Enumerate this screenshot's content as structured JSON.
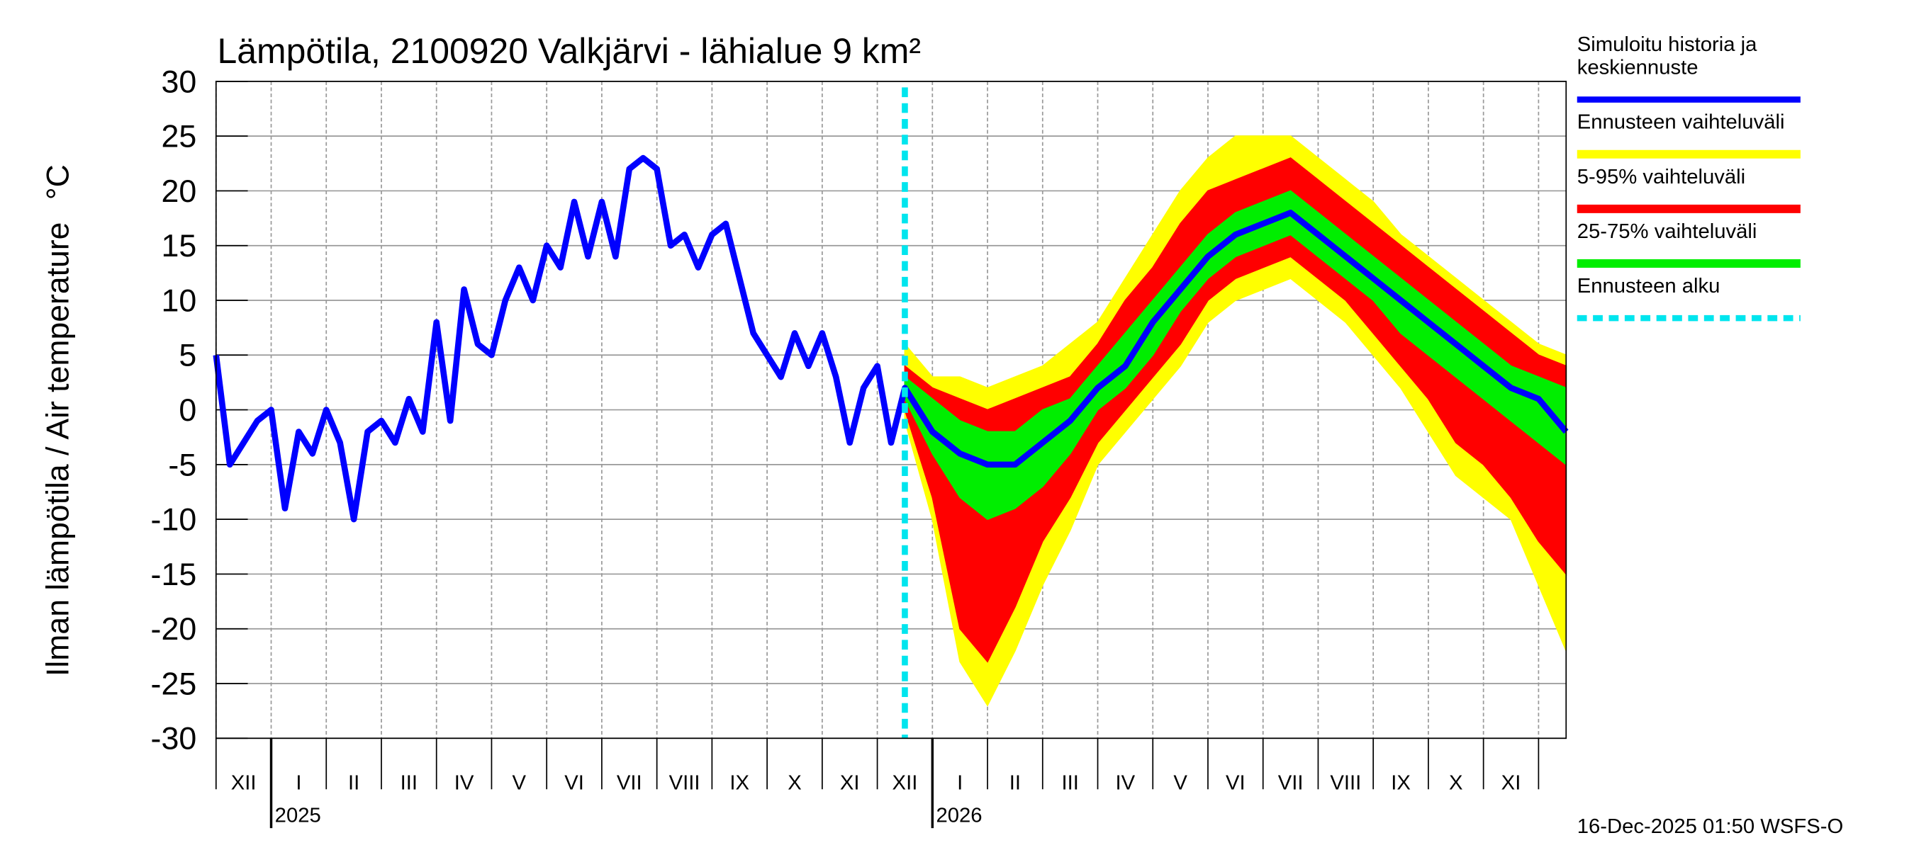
{
  "chart_data": {
    "type": "line",
    "title": "Lämpötila, 2100920 Valkjärvi - lähialue 9 km²",
    "ylabel": "Ilman lämpötila / Air temperature",
    "yunit": "°C",
    "footer": "16-Dec-2025 01:50 WSFS-O",
    "ylim": [
      -30,
      30
    ],
    "yticks": [
      30,
      25,
      20,
      15,
      10,
      5,
      0,
      -5,
      -10,
      -15,
      -20,
      -25,
      -30
    ],
    "xlim": [
      0,
      24.5
    ],
    "xticks": [
      0,
      1,
      2,
      3,
      4,
      5,
      6,
      7,
      8,
      9,
      10,
      11,
      12,
      13,
      14,
      15,
      16,
      17,
      18,
      19,
      20,
      21,
      22,
      23,
      24
    ],
    "month_labels": [
      {
        "value": 0.5,
        "label": "XII"
      },
      {
        "value": 1.5,
        "label": "I"
      },
      {
        "value": 2.5,
        "label": "II"
      },
      {
        "value": 3.5,
        "label": "III"
      },
      {
        "value": 4.5,
        "label": "IV"
      },
      {
        "value": 5.5,
        "label": "V"
      },
      {
        "value": 6.5,
        "label": "VI"
      },
      {
        "value": 7.5,
        "label": "VII"
      },
      {
        "value": 8.5,
        "label": "VIII"
      },
      {
        "value": 9.5,
        "label": "IX"
      },
      {
        "value": 10.5,
        "label": "X"
      },
      {
        "value": 11.5,
        "label": "XI"
      },
      {
        "value": 12.5,
        "label": "XII"
      },
      {
        "value": 13.5,
        "label": "I"
      },
      {
        "value": 14.5,
        "label": "II"
      },
      {
        "value": 15.5,
        "label": "III"
      },
      {
        "value": 16.5,
        "label": "IV"
      },
      {
        "value": 17.5,
        "label": "V"
      },
      {
        "value": 18.5,
        "label": "VI"
      },
      {
        "value": 19.5,
        "label": "VII"
      },
      {
        "value": 20.5,
        "label": "VIII"
      },
      {
        "value": 21.5,
        "label": "IX"
      },
      {
        "value": 22.5,
        "label": "X"
      },
      {
        "value": 23.5,
        "label": "XI"
      }
    ],
    "year_labels": [
      {
        "value": 1,
        "label": "2025"
      },
      {
        "value": 13,
        "label": "2026"
      }
    ],
    "grid": true,
    "bands": [
      {
        "name": "Ennusteen vaihteluväli",
        "color": "#ffff00",
        "x": [
          12.5,
          13,
          13.5,
          14,
          14.5,
          15,
          15.5,
          16,
          16.5,
          17,
          17.5,
          18,
          18.5,
          19,
          19.5,
          20,
          20.5,
          21,
          21.5,
          22,
          22.5,
          23,
          23.5,
          24,
          24.5
        ],
        "low": [
          -1,
          -10,
          -23,
          -27,
          -22,
          -16,
          -11,
          -5,
          -2,
          1,
          4,
          8,
          10,
          11,
          12,
          10,
          8,
          5,
          2,
          -2,
          -6,
          -8,
          -10,
          -16,
          -22
        ],
        "high": [
          6,
          3,
          3,
          2,
          3,
          4,
          6,
          8,
          12,
          16,
          20,
          23,
          25,
          25,
          25,
          23,
          21,
          19,
          16,
          14,
          12,
          10,
          8,
          6,
          5
        ]
      },
      {
        "name": "5-95% vaihteluväli",
        "color": "#ff0000",
        "x": [
          12.5,
          13,
          13.5,
          14,
          14.5,
          15,
          15.5,
          16,
          16.5,
          17,
          17.5,
          18,
          18.5,
          19,
          19.5,
          20,
          20.5,
          21,
          21.5,
          22,
          22.5,
          23,
          23.5,
          24,
          24.5
        ],
        "low": [
          0,
          -8,
          -20,
          -23,
          -18,
          -12,
          -8,
          -3,
          0,
          3,
          6,
          10,
          12,
          13,
          14,
          12,
          10,
          7,
          4,
          1,
          -3,
          -5,
          -8,
          -12,
          -15
        ],
        "high": [
          4,
          2,
          1,
          0,
          1,
          2,
          3,
          6,
          10,
          13,
          17,
          20,
          21,
          22,
          23,
          21,
          19,
          17,
          15,
          13,
          11,
          9,
          7,
          5,
          4
        ]
      },
      {
        "name": "25-75% vaihteluväli",
        "color": "#00ee00",
        "x": [
          12.5,
          13,
          13.5,
          14,
          14.5,
          15,
          15.5,
          16,
          16.5,
          17,
          17.5,
          18,
          18.5,
          19,
          19.5,
          20,
          20.5,
          21,
          21.5,
          22,
          22.5,
          23,
          23.5,
          24,
          24.5
        ],
        "low": [
          1,
          -4,
          -8,
          -10,
          -9,
          -7,
          -4,
          0,
          2,
          5,
          9,
          12,
          14,
          15,
          16,
          14,
          12,
          10,
          7,
          5,
          3,
          1,
          -1,
          -3,
          -5
        ],
        "high": [
          3,
          1,
          -1,
          -2,
          -2,
          0,
          1,
          4,
          7,
          10,
          13,
          16,
          18,
          19,
          20,
          18,
          16,
          14,
          12,
          10,
          8,
          6,
          4,
          3,
          2
        ]
      }
    ],
    "series": [
      {
        "name": "Simuloitu historia ja\nkeskiennuste",
        "color": "#0000ff",
        "x": [
          0,
          0.25,
          0.5,
          0.75,
          1,
          1.25,
          1.5,
          1.75,
          2,
          2.25,
          2.5,
          2.75,
          3,
          3.25,
          3.5,
          3.75,
          4,
          4.25,
          4.5,
          4.75,
          5,
          5.25,
          5.5,
          5.75,
          6,
          6.25,
          6.5,
          6.75,
          7,
          7.25,
          7.5,
          7.75,
          8,
          8.25,
          8.5,
          8.75,
          9,
          9.25,
          9.5,
          9.75,
          10,
          10.25,
          10.5,
          10.75,
          11,
          11.25,
          11.5,
          11.75,
          12,
          12.25,
          12.5,
          13,
          13.5,
          14,
          14.5,
          15,
          15.5,
          16,
          16.5,
          17,
          17.5,
          18,
          18.5,
          19,
          19.5,
          20,
          20.5,
          21,
          21.5,
          22,
          22.5,
          23,
          23.5,
          24,
          24.5
        ],
        "values": [
          5,
          -5,
          -3,
          -1,
          0,
          -9,
          -2,
          -4,
          0,
          -3,
          -10,
          -2,
          -1,
          -3,
          1,
          -2,
          8,
          -1,
          11,
          6,
          5,
          10,
          13,
          10,
          15,
          13,
          19,
          14,
          19,
          14,
          22,
          23,
          22,
          15,
          16,
          13,
          16,
          17,
          12,
          7,
          5,
          3,
          7,
          4,
          7,
          3,
          -3,
          2,
          4,
          -3,
          2,
          -2,
          -4,
          -5,
          -5,
          -3,
          -1,
          2,
          4,
          8,
          11,
          14,
          16,
          17,
          18,
          16,
          14,
          12,
          10,
          8,
          6,
          4,
          2,
          1,
          -2
        ]
      }
    ],
    "forecast_start": {
      "name": "Ennusteen alku",
      "color": "#00e5ee",
      "x": 12.5
    }
  }
}
